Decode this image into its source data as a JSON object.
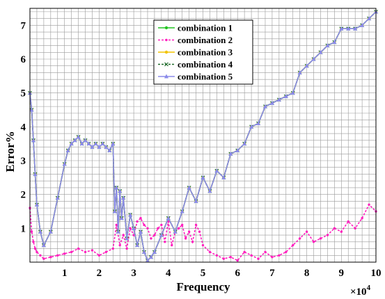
{
  "chart_data": {
    "type": "line",
    "xlabel": "Frequency",
    "ylabel": "Error%",
    "x_multiplier_label": "×10",
    "x_multiplier_exp": "4",
    "xlim": [
      0,
      10
    ],
    "ylim": [
      0,
      7.5
    ],
    "x_ticks": [
      "1",
      "2",
      "3",
      "4",
      "5",
      "6",
      "7",
      "8",
      "9",
      "10"
    ],
    "y_ticks": [
      "1",
      "2",
      "3",
      "4",
      "5",
      "6",
      "7"
    ],
    "grid": true,
    "legend_position": "top-center",
    "series": [
      {
        "name": "combination 1",
        "color": "#22c422",
        "marker": "circle",
        "x": [
          0,
          0.05,
          0.1,
          0.15,
          0.2,
          0.3,
          0.4,
          0.6,
          0.8,
          1.0,
          1.1,
          1.2,
          1.3,
          1.4,
          1.5,
          1.6,
          1.7,
          1.8,
          1.9,
          2.0,
          2.1,
          2.2,
          2.3,
          2.4,
          2.45,
          2.5,
          2.55,
          2.6,
          2.65,
          2.7,
          2.8,
          2.9,
          3.0,
          3.1,
          3.2,
          3.3,
          3.4,
          3.5,
          3.6,
          3.8,
          4.0,
          4.2,
          4.4,
          4.6,
          4.8,
          5.0,
          5.2,
          5.4,
          5.6,
          5.8,
          6.0,
          6.2,
          6.4,
          6.6,
          6.8,
          7.0,
          7.2,
          7.4,
          7.6,
          7.8,
          8.0,
          8.2,
          8.4,
          8.6,
          8.8,
          9.0,
          9.2,
          9.4,
          9.6,
          9.8,
          10.0
        ],
        "y": [
          5.0,
          4.5,
          3.6,
          2.6,
          1.7,
          0.9,
          0.5,
          0.9,
          1.9,
          2.9,
          3.3,
          3.5,
          3.6,
          3.7,
          3.5,
          3.6,
          3.5,
          3.4,
          3.5,
          3.4,
          3.5,
          3.4,
          3.3,
          3.5,
          1.5,
          2.2,
          0.9,
          2.1,
          1.3,
          1.9,
          0.7,
          1.4,
          1.0,
          0.5,
          0.9,
          0.3,
          0.05,
          0.15,
          0.3,
          0.8,
          1.3,
          0.9,
          1.5,
          2.2,
          1.8,
          2.5,
          2.1,
          2.7,
          2.5,
          3.2,
          3.3,
          3.5,
          4.0,
          4.1,
          4.6,
          4.7,
          4.8,
          4.9,
          5.0,
          5.6,
          5.8,
          6.0,
          6.2,
          6.4,
          6.5,
          6.9,
          6.9,
          6.9,
          7.0,
          7.2,
          7.4
        ]
      },
      {
        "name": "combination 2",
        "color": "#ff1fbe",
        "marker": "dot",
        "x": [
          0,
          0.05,
          0.1,
          0.15,
          0.2,
          0.3,
          0.4,
          0.6,
          0.8,
          1.0,
          1.2,
          1.4,
          1.6,
          1.8,
          2.0,
          2.2,
          2.4,
          2.5,
          2.6,
          2.7,
          2.8,
          2.9,
          3.0,
          3.1,
          3.2,
          3.3,
          3.4,
          3.5,
          3.6,
          3.7,
          3.8,
          3.9,
          4.0,
          4.1,
          4.2,
          4.3,
          4.4,
          4.5,
          4.6,
          4.7,
          4.8,
          4.9,
          5.0,
          5.2,
          5.4,
          5.6,
          5.8,
          6.0,
          6.2,
          6.4,
          6.6,
          6.8,
          7.0,
          7.2,
          7.4,
          7.6,
          7.8,
          8.0,
          8.2,
          8.4,
          8.6,
          8.8,
          9.0,
          9.2,
          9.4,
          9.6,
          9.8,
          10.0
        ],
        "y": [
          1.6,
          0.9,
          0.6,
          0.4,
          0.3,
          0.2,
          0.1,
          0.15,
          0.2,
          0.25,
          0.3,
          0.4,
          0.3,
          0.35,
          0.2,
          0.3,
          0.4,
          1.1,
          0.5,
          0.8,
          0.4,
          1.0,
          0.8,
          1.2,
          1.3,
          1.1,
          1.0,
          0.7,
          0.8,
          1.0,
          1.1,
          0.6,
          1.2,
          0.5,
          0.9,
          1.0,
          1.1,
          0.7,
          0.9,
          0.6,
          1.1,
          0.9,
          0.5,
          0.3,
          0.2,
          0.1,
          0.15,
          0.05,
          0.3,
          0.2,
          0.1,
          0.3,
          0.15,
          0.2,
          0.3,
          0.5,
          0.7,
          0.9,
          0.6,
          0.7,
          0.8,
          1.0,
          0.9,
          1.2,
          1.0,
          1.3,
          1.7,
          1.5
        ]
      },
      {
        "name": "combination 3",
        "color": "#f2c300",
        "marker": "circle",
        "x": [
          0,
          0.05,
          0.1,
          0.15,
          0.2,
          0.3,
          0.4,
          0.6,
          0.8,
          1.0,
          1.1,
          1.2,
          1.3,
          1.4,
          1.5,
          1.6,
          1.7,
          1.8,
          1.9,
          2.0,
          2.1,
          2.2,
          2.3,
          2.4,
          2.45,
          2.5,
          2.55,
          2.6,
          2.65,
          2.7,
          2.8,
          2.9,
          3.0,
          3.1,
          3.2,
          3.3,
          3.4,
          3.5,
          3.6,
          3.8,
          4.0,
          4.2,
          4.4,
          4.6,
          4.8,
          5.0,
          5.2,
          5.4,
          5.6,
          5.8,
          6.0,
          6.2,
          6.4,
          6.6,
          6.8,
          7.0,
          7.2,
          7.4,
          7.6,
          7.8,
          8.0,
          8.2,
          8.4,
          8.6,
          8.8,
          9.0,
          9.2,
          9.4,
          9.6,
          9.8,
          10.0
        ],
        "y": [
          5.0,
          4.5,
          3.6,
          2.6,
          1.7,
          0.9,
          0.5,
          0.9,
          1.9,
          2.9,
          3.3,
          3.5,
          3.6,
          3.7,
          3.5,
          3.6,
          3.5,
          3.4,
          3.5,
          3.4,
          3.5,
          3.4,
          3.3,
          3.5,
          1.5,
          2.2,
          0.9,
          2.1,
          1.3,
          1.9,
          0.7,
          1.4,
          1.0,
          0.5,
          0.9,
          0.3,
          0.05,
          0.15,
          0.3,
          0.8,
          1.3,
          0.9,
          1.5,
          2.2,
          1.8,
          2.5,
          2.1,
          2.7,
          2.5,
          3.2,
          3.3,
          3.5,
          4.0,
          4.1,
          4.6,
          4.7,
          4.8,
          4.9,
          5.0,
          5.6,
          5.8,
          6.0,
          6.2,
          6.4,
          6.5,
          6.9,
          6.9,
          6.9,
          7.0,
          7.2,
          7.4
        ]
      },
      {
        "name": "combination 4",
        "color": "#1f6b2a",
        "marker": "cross",
        "x": [
          0,
          0.05,
          0.1,
          0.15,
          0.2,
          0.3,
          0.4,
          0.6,
          0.8,
          1.0,
          1.1,
          1.2,
          1.3,
          1.4,
          1.5,
          1.6,
          1.7,
          1.8,
          1.9,
          2.0,
          2.1,
          2.2,
          2.3,
          2.4,
          2.45,
          2.5,
          2.55,
          2.6,
          2.65,
          2.7,
          2.8,
          2.9,
          3.0,
          3.1,
          3.2,
          3.3,
          3.4,
          3.5,
          3.6,
          3.8,
          4.0,
          4.2,
          4.4,
          4.6,
          4.8,
          5.0,
          5.2,
          5.4,
          5.6,
          5.8,
          6.0,
          6.2,
          6.4,
          6.6,
          6.8,
          7.0,
          7.2,
          7.4,
          7.6,
          7.8,
          8.0,
          8.2,
          8.4,
          8.6,
          8.8,
          9.0,
          9.2,
          9.4,
          9.6,
          9.8,
          10.0
        ],
        "y": [
          5.0,
          4.5,
          3.6,
          2.6,
          1.7,
          0.9,
          0.5,
          0.9,
          1.9,
          2.9,
          3.3,
          3.5,
          3.6,
          3.7,
          3.5,
          3.6,
          3.5,
          3.4,
          3.5,
          3.4,
          3.5,
          3.4,
          3.3,
          3.5,
          1.5,
          2.2,
          0.9,
          2.1,
          1.3,
          1.9,
          0.7,
          1.4,
          1.0,
          0.5,
          0.9,
          0.3,
          0.05,
          0.15,
          0.3,
          0.8,
          1.3,
          0.9,
          1.5,
          2.2,
          1.8,
          2.5,
          2.1,
          2.7,
          2.5,
          3.2,
          3.3,
          3.5,
          4.0,
          4.1,
          4.6,
          4.7,
          4.8,
          4.9,
          5.0,
          5.6,
          5.8,
          6.0,
          6.2,
          6.4,
          6.5,
          6.9,
          6.9,
          6.9,
          7.0,
          7.2,
          7.4
        ]
      },
      {
        "name": "combination 5",
        "color": "#8a8aea",
        "marker": "triangle",
        "x": [
          0,
          0.05,
          0.1,
          0.15,
          0.2,
          0.3,
          0.4,
          0.6,
          0.8,
          1.0,
          1.1,
          1.2,
          1.3,
          1.4,
          1.5,
          1.6,
          1.7,
          1.8,
          1.9,
          2.0,
          2.1,
          2.2,
          2.3,
          2.4,
          2.45,
          2.5,
          2.55,
          2.6,
          2.65,
          2.7,
          2.8,
          2.9,
          3.0,
          3.1,
          3.2,
          3.3,
          3.4,
          3.5,
          3.6,
          3.8,
          4.0,
          4.2,
          4.4,
          4.6,
          4.8,
          5.0,
          5.2,
          5.4,
          5.6,
          5.8,
          6.0,
          6.2,
          6.4,
          6.6,
          6.8,
          7.0,
          7.2,
          7.4,
          7.6,
          7.8,
          8.0,
          8.2,
          8.4,
          8.6,
          8.8,
          9.0,
          9.2,
          9.4,
          9.6,
          9.8,
          10.0
        ],
        "y": [
          5.0,
          4.5,
          3.6,
          2.6,
          1.7,
          0.9,
          0.5,
          0.9,
          1.9,
          2.9,
          3.3,
          3.5,
          3.6,
          3.7,
          3.5,
          3.6,
          3.5,
          3.4,
          3.5,
          3.4,
          3.5,
          3.4,
          3.3,
          3.5,
          1.5,
          2.2,
          0.9,
          2.1,
          1.3,
          1.9,
          0.7,
          1.4,
          1.0,
          0.5,
          0.9,
          0.3,
          0.05,
          0.15,
          0.3,
          0.8,
          1.3,
          0.9,
          1.5,
          2.2,
          1.8,
          2.5,
          2.1,
          2.7,
          2.5,
          3.2,
          3.3,
          3.5,
          4.0,
          4.1,
          4.6,
          4.7,
          4.8,
          4.9,
          5.0,
          5.6,
          5.8,
          6.0,
          6.2,
          6.4,
          6.5,
          6.9,
          6.9,
          6.9,
          7.0,
          7.2,
          7.4
        ]
      }
    ]
  }
}
